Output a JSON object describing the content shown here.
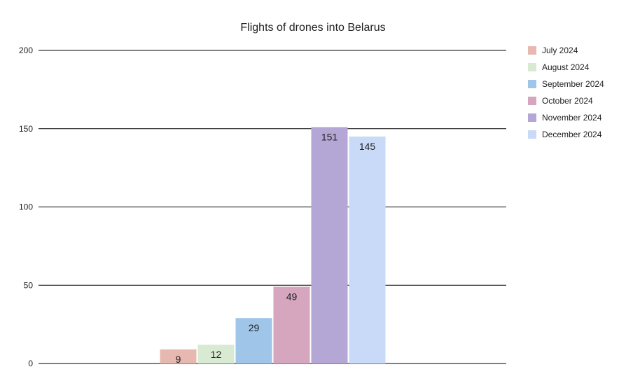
{
  "chart_data": {
    "type": "bar",
    "title": "Flights of drones into Belarus",
    "xlabel": "",
    "ylabel": "",
    "ylim": [
      0,
      200
    ],
    "yticks": [
      0,
      50,
      100,
      150,
      200
    ],
    "grid": true,
    "legend_position": "right",
    "series": [
      {
        "name": "July 2024",
        "values": [
          9
        ],
        "color": "#e6b8af"
      },
      {
        "name": "August 2024",
        "values": [
          12
        ],
        "color": "#d9ead3"
      },
      {
        "name": "September 2024",
        "values": [
          29
        ],
        "color": "#9fc5e8"
      },
      {
        "name": "October 2024",
        "values": [
          49
        ],
        "color": "#d5a6bd"
      },
      {
        "name": "November 2024",
        "values": [
          151
        ],
        "color": "#b4a7d6"
      },
      {
        "name": "December 2024",
        "values": [
          145
        ],
        "color": "#c9daf8"
      }
    ]
  }
}
